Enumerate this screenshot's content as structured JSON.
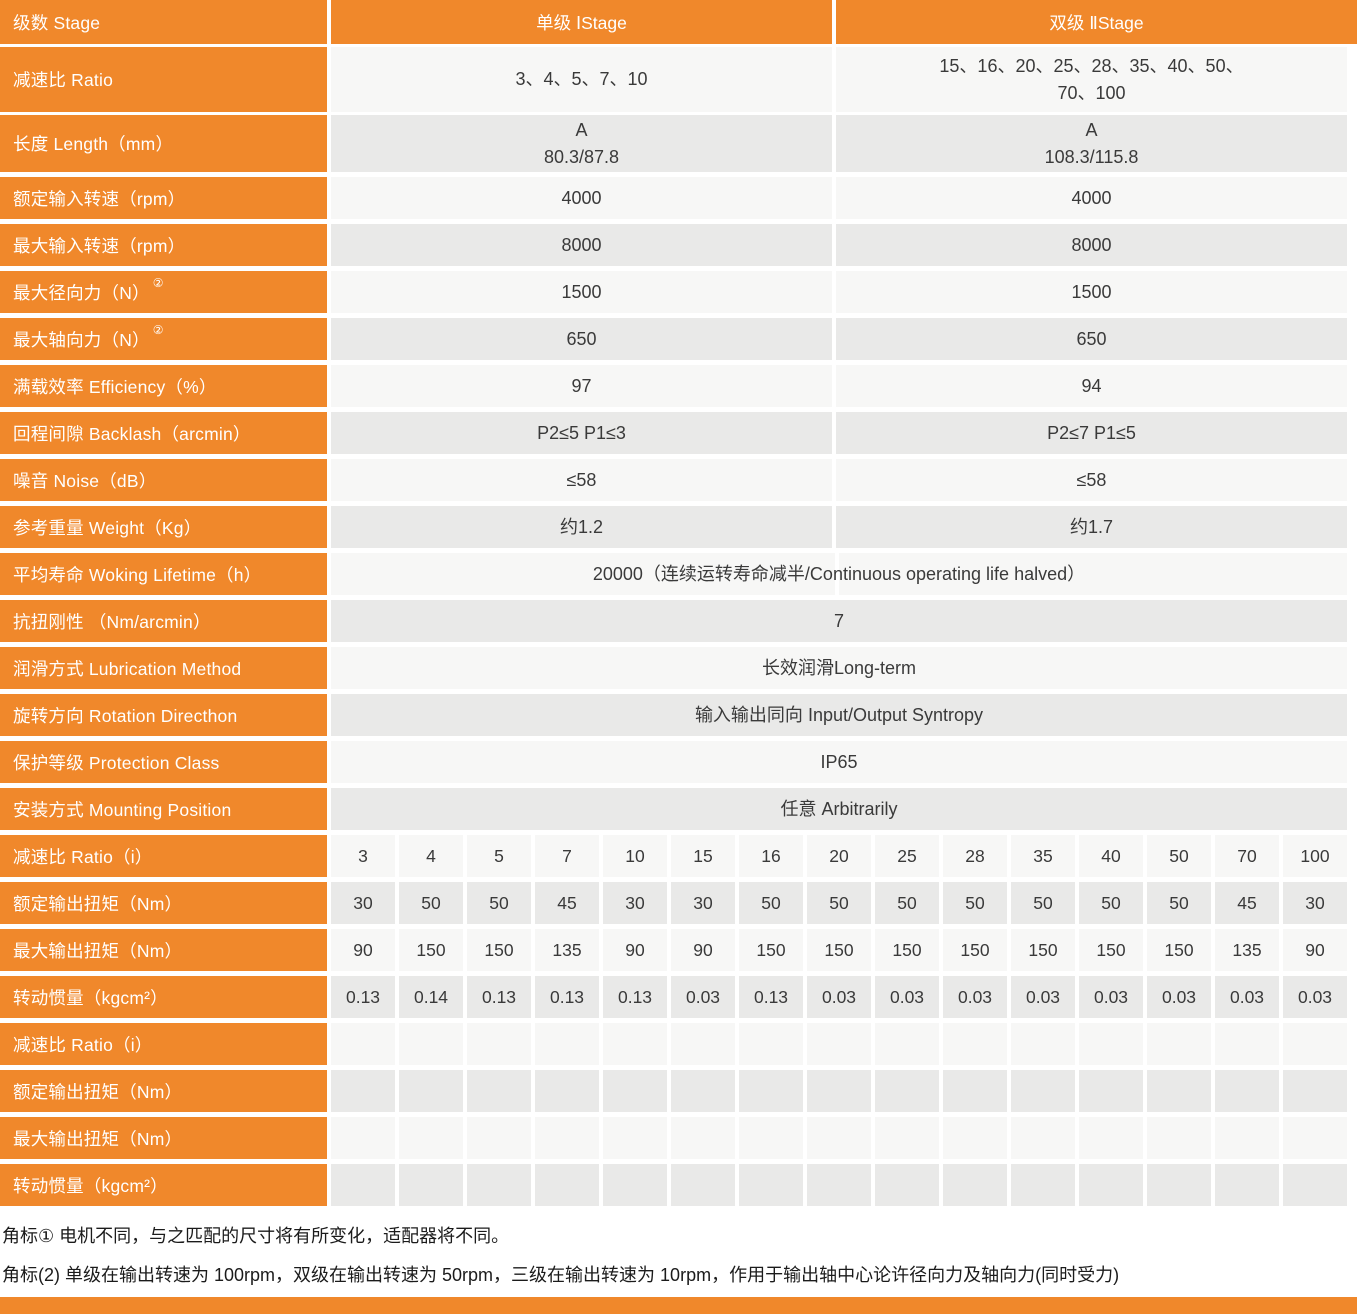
{
  "colors": {
    "orange": "#F0882B",
    "row_light": "#F7F7F6",
    "row_dark": "#E9E9E8"
  },
  "header": {
    "col0": "级数 Stage",
    "col1": "单级 ⅠStage",
    "col2": "双级 ⅡStage"
  },
  "spec_rows": [
    {
      "label": "减速比 Ratio",
      "type": "two",
      "values": [
        [
          "3、4、5、7、10"
        ],
        [
          "15、16、20、25、28、35、40、50、",
          "70、100"
        ]
      ]
    },
    {
      "label": "长度 Length（mm）",
      "type": "two",
      "values": [
        [
          "A",
          "80.3/87.8"
        ],
        [
          "A",
          "108.3/115.8"
        ]
      ]
    },
    {
      "label": "额定输入转速（rpm）",
      "type": "two",
      "values": [
        [
          "4000"
        ],
        [
          "4000"
        ]
      ]
    },
    {
      "label": "最大输入转速（rpm）",
      "type": "two",
      "values": [
        [
          "8000"
        ],
        [
          "8000"
        ]
      ]
    },
    {
      "label": "最大径向力（N）",
      "sup": "②",
      "type": "two",
      "values": [
        [
          "1500"
        ],
        [
          "1500"
        ]
      ]
    },
    {
      "label": "最大轴向力（N）",
      "sup": "②",
      "type": "two",
      "values": [
        [
          "650"
        ],
        [
          "650"
        ]
      ]
    },
    {
      "label": "满载效率 Efficiency（%）",
      "type": "two",
      "values": [
        [
          "97"
        ],
        [
          "94"
        ]
      ]
    },
    {
      "label": "回程间隙 Backlash（arcmin）",
      "type": "two",
      "values": [
        [
          "P2≤5  P1≤3"
        ],
        [
          "P2≤7  P1≤5"
        ]
      ]
    },
    {
      "label": "噪音 Noise（dB）",
      "type": "two",
      "values": [
        [
          "≤58"
        ],
        [
          "≤58"
        ]
      ]
    },
    {
      "label": "参考重量 Weight（Kg）",
      "type": "two",
      "values": [
        [
          "约1.2"
        ],
        [
          "约1.7"
        ]
      ]
    },
    {
      "label": "平均寿命 Woking Lifetime（h）",
      "type": "span",
      "divider": true,
      "value": "20000（连续运转寿命减半/Continuous operating life halved）"
    },
    {
      "label": "抗扭刚性 （Nm/arcmin）",
      "type": "span",
      "value": "7"
    },
    {
      "label": "润滑方式 Lubrication Method",
      "type": "span",
      "value": "长效润滑Long-term"
    },
    {
      "label": "旋转方向 Rotation Directhon",
      "type": "span",
      "value": "输入输出同向 Input/Output Syntropy"
    },
    {
      "label": "保护等级 Protection Class",
      "type": "span",
      "value": "IP65"
    },
    {
      "label": "安装方式 Mounting Position",
      "type": "span",
      "value": "任意 Arbitrarily"
    }
  ],
  "ratio_table": {
    "rows": [
      {
        "label": "减速比 Ratio（i）",
        "values": [
          "3",
          "4",
          "5",
          "7",
          "10",
          "15",
          "16",
          "20",
          "25",
          "28",
          "35",
          "40",
          "50",
          "70",
          "100"
        ]
      },
      {
        "label": "额定输出扭矩（Nm）",
        "values": [
          "30",
          "50",
          "50",
          "45",
          "30",
          "30",
          "50",
          "50",
          "50",
          "50",
          "50",
          "50",
          "50",
          "45",
          "30"
        ]
      },
      {
        "label": "最大输出扭矩（Nm）",
        "values": [
          "90",
          "150",
          "150",
          "135",
          "90",
          "90",
          "150",
          "150",
          "150",
          "150",
          "150",
          "150",
          "150",
          "135",
          "90"
        ]
      },
      {
        "label": "转动惯量（kgcm²）",
        "values": [
          "0.13",
          "0.14",
          "0.13",
          "0.13",
          "0.13",
          "0.03",
          "0.13",
          "0.03",
          "0.03",
          "0.03",
          "0.03",
          "0.03",
          "0.03",
          "0.03",
          "0.03"
        ]
      },
      {
        "label": "减速比 Ratio（i）",
        "values": [
          "",
          "",
          "",
          "",
          "",
          "",
          "",
          "",
          "",
          "",
          "",
          "",
          "",
          "",
          ""
        ]
      },
      {
        "label": "额定输出扭矩（Nm）",
        "values": [
          "",
          "",
          "",
          "",
          "",
          "",
          "",
          "",
          "",
          "",
          "",
          "",
          "",
          "",
          ""
        ]
      },
      {
        "label": "最大输出扭矩（Nm）",
        "values": [
          "",
          "",
          "",
          "",
          "",
          "",
          "",
          "",
          "",
          "",
          "",
          "",
          "",
          "",
          ""
        ]
      },
      {
        "label": "转动惯量（kgcm²）",
        "values": [
          "",
          "",
          "",
          "",
          "",
          "",
          "",
          "",
          "",
          "",
          "",
          "",
          "",
          "",
          ""
        ]
      }
    ]
  },
  "footnotes": [
    "角标① 电机不同，与之匹配的尺寸将有所变化，适配器将不同。",
    "角标(2) 单级在输出转速为 100rpm，双级在输出转速为 50rpm，三级在输出转速为 10rpm，作用于输出轴中心论许径向力及轴向力(同时受力)"
  ]
}
